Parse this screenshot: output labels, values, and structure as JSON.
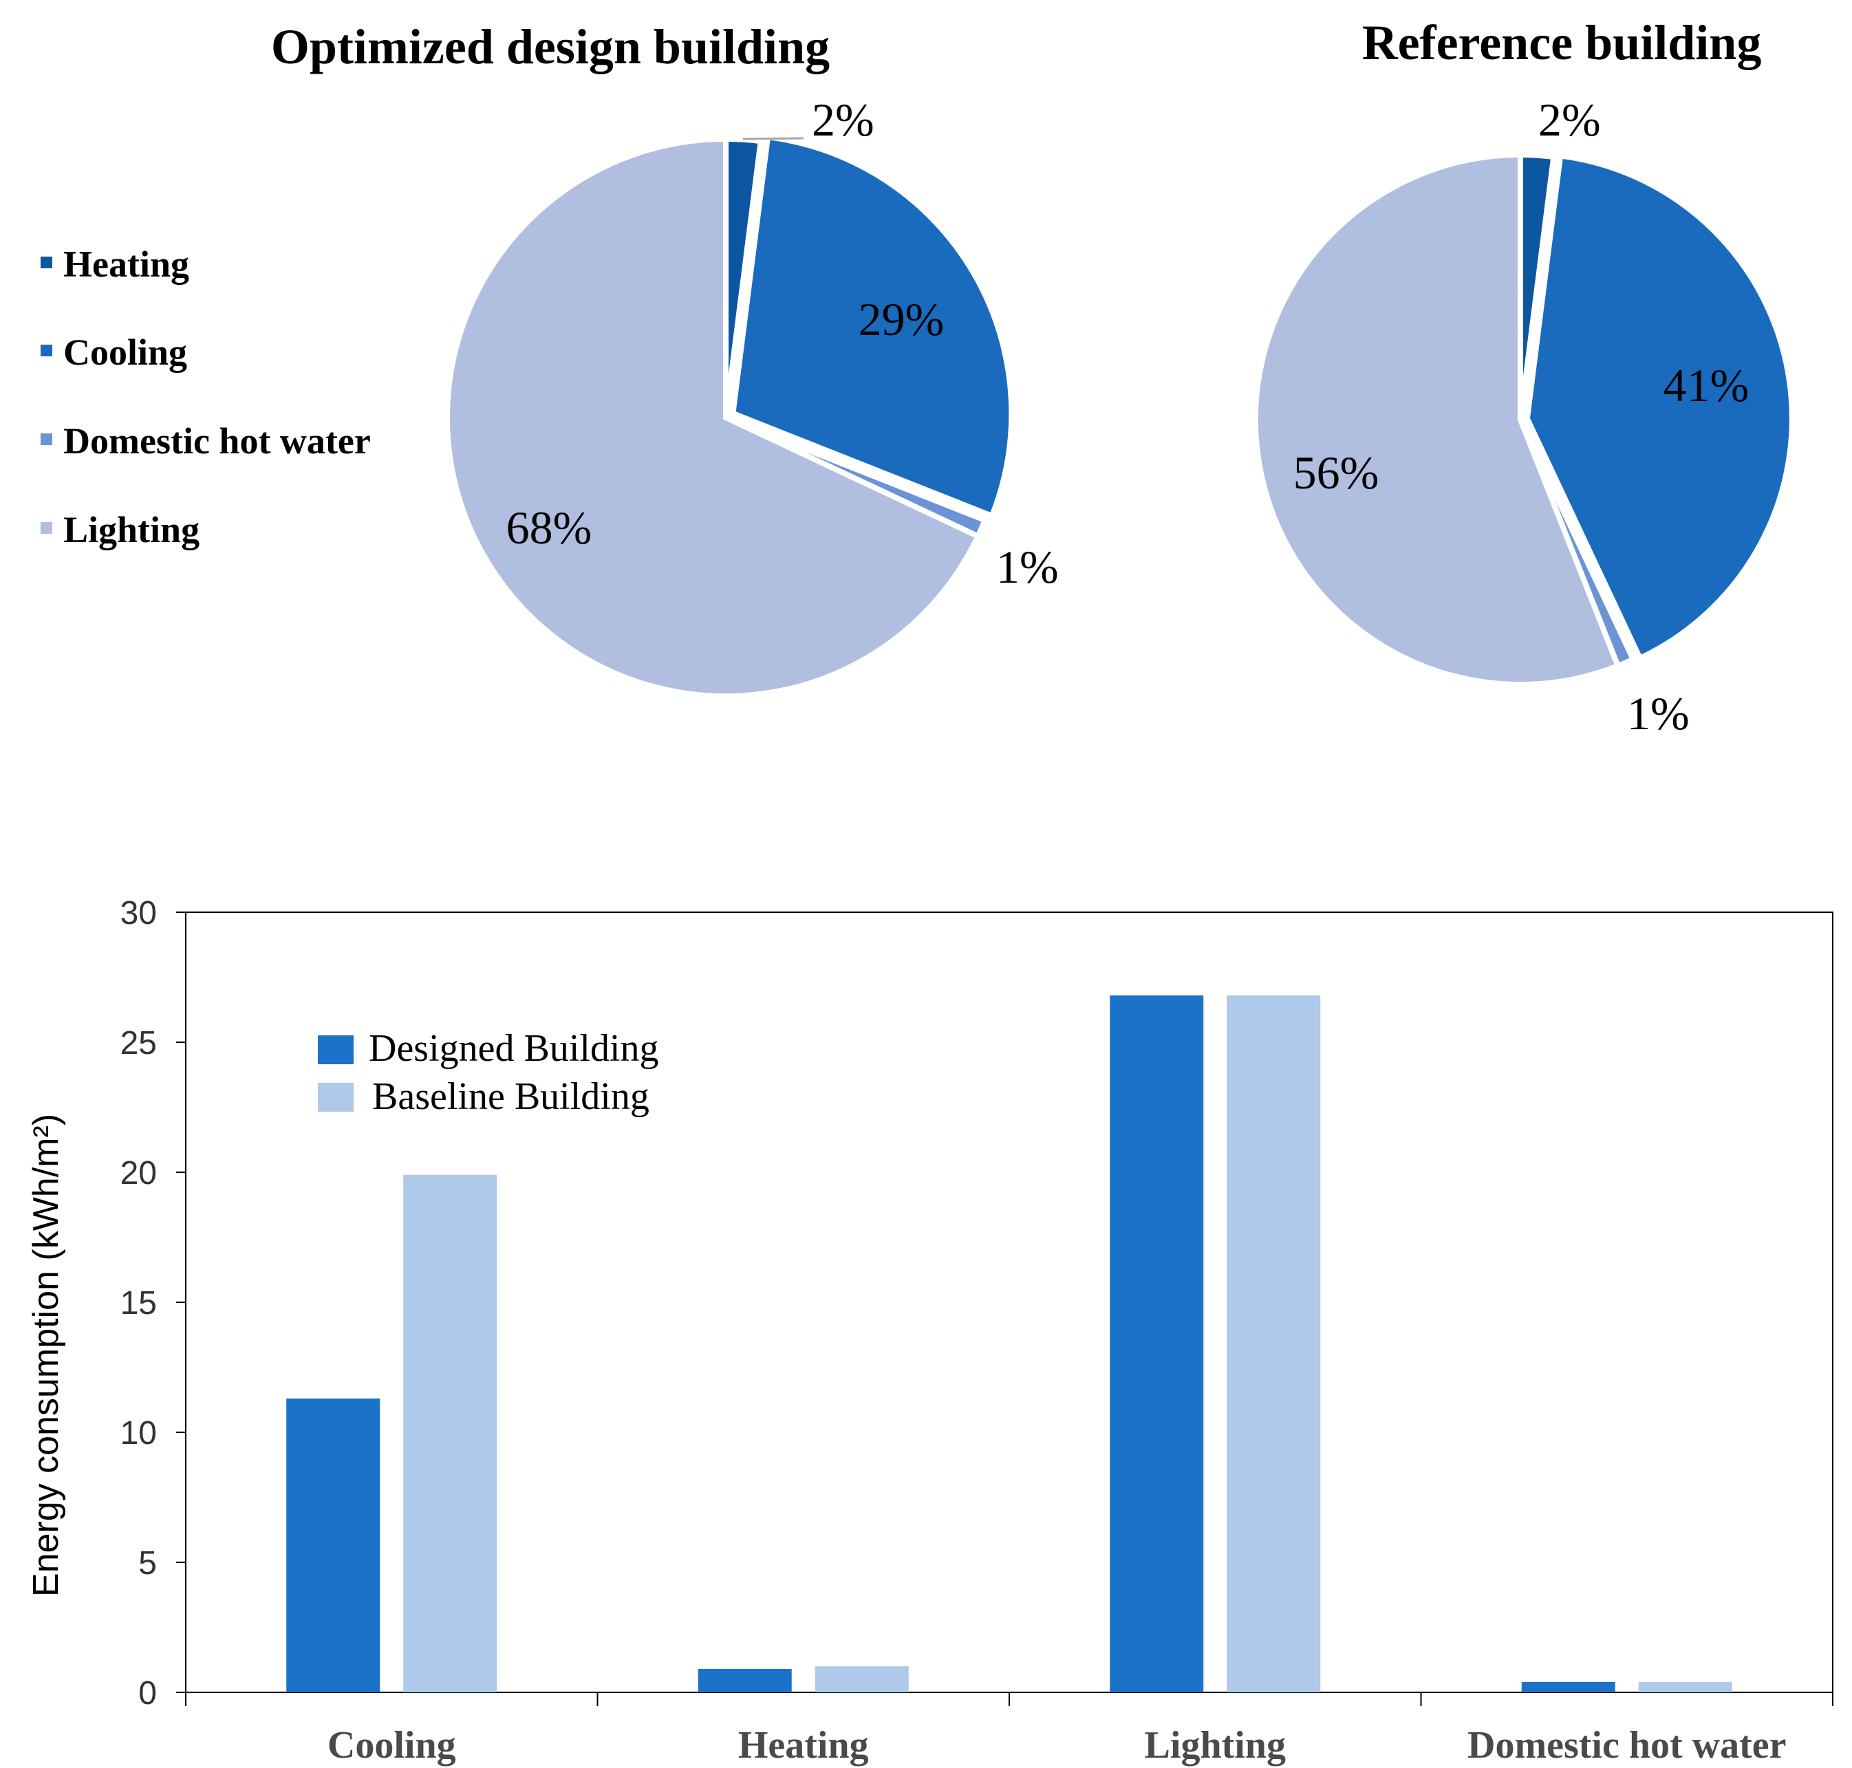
{
  "colors": {
    "heating": "#0d57a0",
    "cooling": "#1a6bbd",
    "domestic_hot_water": "#6c93d6",
    "lighting": "#b0bfe0",
    "designed": "#1b73c9",
    "baseline": "#aec9ea"
  },
  "pie_legend": {
    "items": [
      {
        "label": "Heating",
        "color": "#0d57a0"
      },
      {
        "label": "Cooling",
        "color": "#1a6bbd"
      },
      {
        "label": "Domestic hot water",
        "color": "#6c93d6"
      },
      {
        "label": "Lighting",
        "color": "#b0bfe0"
      }
    ]
  },
  "chart_data": [
    {
      "type": "pie",
      "title": "Optimized design building",
      "slices": [
        {
          "name": "Heating",
          "value": 2,
          "label": "2%"
        },
        {
          "name": "Cooling",
          "value": 29,
          "label": "29%"
        },
        {
          "name": "Domestic hot water",
          "value": 1,
          "label": "1%"
        },
        {
          "name": "Lighting",
          "value": 68,
          "label": "68%"
        }
      ]
    },
    {
      "type": "pie",
      "title": "Reference building",
      "slices": [
        {
          "name": "Heating",
          "value": 2,
          "label": "2%"
        },
        {
          "name": "Cooling",
          "value": 41,
          "label": "41%"
        },
        {
          "name": "Domestic hot water",
          "value": 1,
          "label": "1%"
        },
        {
          "name": "Lighting",
          "value": 56,
          "label": "56%"
        }
      ]
    },
    {
      "type": "bar",
      "title": "",
      "categories": [
        "Cooling",
        "Heating",
        "Lighting",
        "Domestic hot water"
      ],
      "series": [
        {
          "name": "Designed Building",
          "values": [
            11.3,
            0.9,
            26.8,
            0.4
          ]
        },
        {
          "name": "Baseline Building",
          "values": [
            19.9,
            1.0,
            26.8,
            0.4
          ]
        }
      ],
      "xlabel": "",
      "ylabel": "Energy consumption (kWh/m²)",
      "ylim": [
        0,
        30
      ],
      "yticks": [
        "0",
        "5",
        "10",
        "15",
        "20",
        "25",
        "30"
      ],
      "grid": false,
      "legend": "top-left"
    }
  ]
}
